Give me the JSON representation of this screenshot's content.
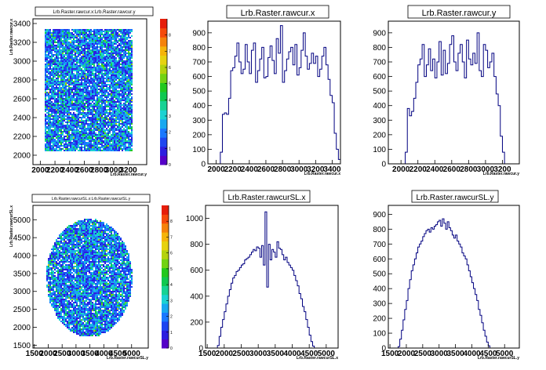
{
  "window": {
    "style": "ROOT canvas, 2x3 pads"
  },
  "colors": {
    "hist_line": "#000080",
    "axis": "#000000",
    "background": "#ffffff"
  },
  "colz_palette": [
    "#5500c8",
    "#2c1ee0",
    "#1e46f0",
    "#1a78ff",
    "#18a8f0",
    "#1cd2d2",
    "#18d294",
    "#10c850",
    "#22c81e",
    "#72d214",
    "#b4d20e",
    "#e6d210",
    "#f5b40a",
    "#f5820a",
    "#f54a0a",
    "#e61e0a"
  ],
  "chart_data": [
    {
      "type": "heatmap",
      "title": "Lrb.Raster.rawcur.x:Lrb.Raster.rawcur.y",
      "xlabel": "Lrb.Raster.rawcur.y",
      "ylabel": "Lrb.Raster.rawcur.x",
      "xlim": [
        1900,
        3450
      ],
      "ylim": [
        1900,
        3450
      ],
      "x_ticks": [
        "2000",
        "2200",
        "2400",
        "2600",
        "2800",
        "3000",
        "3200"
      ],
      "y_ticks": [
        "2000",
        "2200",
        "2400",
        "2600",
        "2800",
        "3000",
        "3200",
        "3400"
      ],
      "z_ticks": [
        "0",
        "1",
        "2",
        "3",
        "4",
        "5",
        "6",
        "7",
        "8"
      ],
      "zlim": [
        0,
        9
      ],
      "region": {
        "shape": "rectangle",
        "x": [
          2050,
          3250
        ],
        "y": [
          2050,
          3350
        ]
      }
    },
    {
      "type": "histogram",
      "title": "Lrb.Raster.rawcur.x",
      "xlabel": "Lrb.Raster.rawcur.x",
      "xlim": [
        1900,
        3500
      ],
      "ylim": [
        0,
        980
      ],
      "x_ticks": [
        "2000",
        "2200",
        "2400",
        "2600",
        "2800",
        "3000",
        "3200",
        "3400"
      ],
      "y_ticks": [
        "0",
        "100",
        "200",
        "300",
        "400",
        "500",
        "600",
        "700",
        "800",
        "900"
      ],
      "bin_start": 2050,
      "bin_width": 25,
      "values": [
        80,
        340,
        350,
        340,
        450,
        640,
        660,
        740,
        830,
        700,
        620,
        650,
        820,
        700,
        620,
        780,
        830,
        560,
        640,
        720,
        800,
        590,
        600,
        730,
        810,
        710,
        620,
        860,
        760,
        950,
        560,
        640,
        720,
        770,
        800,
        680,
        820,
        610,
        660,
        780,
        900,
        740,
        650,
        690,
        760,
        690,
        740,
        600,
        650,
        740,
        800,
        680,
        580,
        470,
        420,
        210,
        100,
        30
      ]
    },
    {
      "type": "histogram",
      "title": "Lrb.Raster.rawcur.y",
      "xlabel": "Lrb.Raster.rawcur.y",
      "xlim": [
        1850,
        3400
      ],
      "ylim": [
        0,
        980
      ],
      "x_ticks": [
        "2000",
        "2200",
        "2400",
        "2600",
        "2800",
        "3000",
        "3200"
      ],
      "y_ticks": [
        "0",
        "100",
        "200",
        "300",
        "400",
        "500",
        "600",
        "700",
        "800",
        "900"
      ],
      "bin_start": 2050,
      "bin_width": 25,
      "values": [
        80,
        380,
        330,
        360,
        450,
        560,
        680,
        720,
        820,
        600,
        680,
        790,
        640,
        720,
        590,
        700,
        840,
        610,
        780,
        620,
        690,
        820,
        880,
        700,
        640,
        760,
        820,
        700,
        590,
        850,
        720,
        680,
        760,
        690,
        900,
        640,
        600,
        820,
        780,
        660,
        700,
        760,
        600,
        480,
        400,
        190,
        80
      ]
    },
    {
      "type": "heatmap",
      "title": "Lrb.Raster.rawcurSL.x:Lrb.Raster.rawcurSL.y",
      "xlabel": "Lrb.Raster.rawcurSL.y",
      "ylabel": "Lrb.Raster.rawcurSL.x",
      "xlim": [
        1450,
        5600
      ],
      "ylim": [
        1420,
        5400
      ],
      "x_ticks": [
        "1500",
        "2000",
        "2500",
        "3000",
        "3500",
        "4000",
        "4500",
        "5000"
      ],
      "y_ticks": [
        "1500",
        "2000",
        "2500",
        "3000",
        "3500",
        "4000",
        "4500",
        "5000"
      ],
      "z_ticks": [
        "0",
        "1",
        "2",
        "3",
        "4",
        "5",
        "6",
        "7",
        "8"
      ],
      "zlim": [
        0,
        9
      ],
      "region": {
        "shape": "ellipse",
        "cx": 3450,
        "cy": 3400,
        "rx": 1550,
        "ry": 1650
      }
    },
    {
      "type": "histogram",
      "title": "Lrb.Raster.rawcurSL.x",
      "xlabel": "Lrb.Raster.rawcurSL.x",
      "xlim": [
        1450,
        5350
      ],
      "ylim": [
        0,
        1100
      ],
      "x_ticks": [
        "1500",
        "2000",
        "2500",
        "3000",
        "3500",
        "4000",
        "4500",
        "5000"
      ],
      "y_ticks": [
        "0",
        "200",
        "400",
        "600",
        "800",
        "1000"
      ],
      "bin_start": 1800,
      "bin_width": 50,
      "values": [
        20,
        90,
        160,
        220,
        280,
        340,
        400,
        450,
        500,
        540,
        560,
        590,
        600,
        620,
        640,
        650,
        680,
        690,
        700,
        720,
        740,
        760,
        750,
        780,
        770,
        700,
        790,
        640,
        1050,
        470,
        800,
        680,
        760,
        740,
        700,
        820,
        770,
        760,
        720,
        680,
        700,
        660,
        640,
        620,
        600,
        560,
        520,
        480,
        420,
        380,
        320,
        280,
        220,
        160,
        100,
        50,
        15
      ]
    },
    {
      "type": "histogram",
      "title": "Lrb.Raster.rawcurSL.y",
      "xlabel": "Lrb.Raster.rawcurSL.y",
      "xlim": [
        1450,
        5450
      ],
      "ylim": [
        0,
        960
      ],
      "x_ticks": [
        "1500",
        "2000",
        "2500",
        "3000",
        "3500",
        "4000",
        "4500",
        "5000"
      ],
      "y_ticks": [
        "0",
        "100",
        "200",
        "300",
        "400",
        "500",
        "600",
        "700",
        "800",
        "900"
      ],
      "bin_start": 1750,
      "bin_width": 50,
      "values": [
        10,
        60,
        120,
        190,
        260,
        320,
        400,
        460,
        520,
        560,
        600,
        640,
        680,
        700,
        720,
        750,
        770,
        790,
        800,
        780,
        810,
        800,
        820,
        830,
        850,
        860,
        820,
        870,
        840,
        800,
        850,
        810,
        790,
        760,
        740,
        760,
        720,
        700,
        680,
        640,
        620,
        600,
        560,
        520,
        480,
        440,
        400,
        360,
        320,
        260,
        220,
        170,
        120,
        80,
        40,
        15
      ]
    }
  ]
}
